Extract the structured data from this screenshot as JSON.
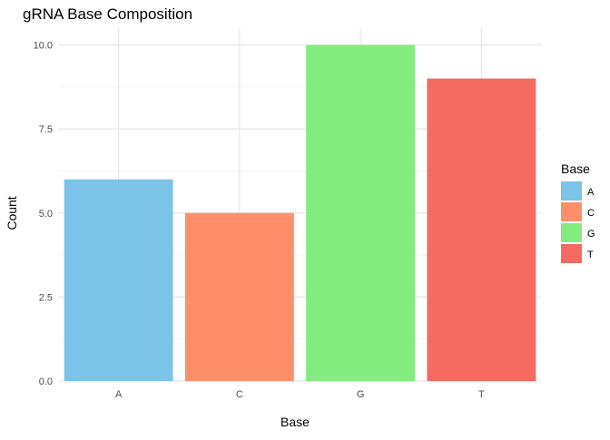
{
  "chart_data": {
    "type": "bar",
    "title": "gRNA Base Composition",
    "xlabel": "Base",
    "ylabel": "Count",
    "categories": [
      "A",
      "C",
      "G",
      "T"
    ],
    "values": [
      6,
      5,
      10,
      9
    ],
    "colors": [
      "#7BC4E8",
      "#FF8F6B",
      "#82ED7E",
      "#F56B62"
    ],
    "ylim": [
      0,
      10.5
    ],
    "yticks": [
      0,
      2.5,
      5,
      7.5,
      10
    ],
    "ytick_labels": [
      "0.0",
      "2.5",
      "5.0",
      "7.5",
      "10.0"
    ],
    "grid": true,
    "legend": {
      "title": "Base",
      "position": "right",
      "items": [
        "A",
        "C",
        "G",
        "T"
      ]
    }
  }
}
